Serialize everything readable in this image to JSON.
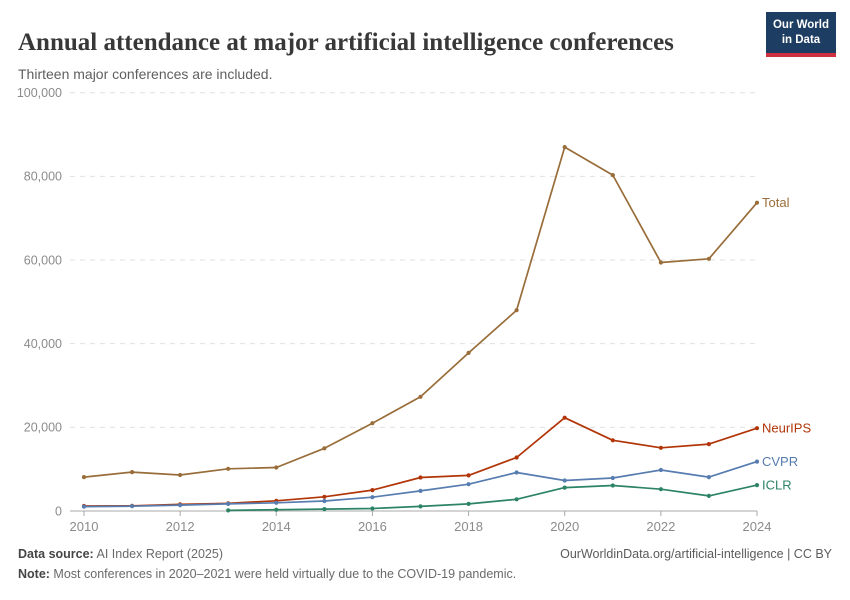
{
  "header": {
    "logo": {
      "line1": "Our World",
      "line2": "in Data",
      "bg_color": "#1d3d63",
      "bar_color": "#d03140"
    }
  },
  "chart_data": {
    "type": "line",
    "title": "Annual attendance at major artificial intelligence conferences",
    "subtitle": "Thirteen major conferences are included.",
    "x": [
      2010,
      2011,
      2012,
      2013,
      2014,
      2015,
      2016,
      2017,
      2018,
      2019,
      2020,
      2021,
      2022,
      2023,
      2024
    ],
    "series": [
      {
        "name": "Total",
        "color": "#996D39",
        "values": [
          8100,
          9300,
          8600,
          10100,
          10400,
          15000,
          21000,
          27300,
          37800,
          48000,
          87000,
          80300,
          59400,
          60300,
          73700
        ]
      },
      {
        "name": "NeurIPS",
        "color": "#B13507",
        "values": [
          1200,
          1250,
          1600,
          1850,
          2450,
          3400,
          5000,
          8000,
          8500,
          12800,
          22300,
          16900,
          15100,
          16000,
          19800
        ]
      },
      {
        "name": "CVPR",
        "color": "#577CB0",
        "values": [
          1050,
          1150,
          1400,
          1700,
          1950,
          2400,
          3300,
          4800,
          6400,
          9200,
          7300,
          7900,
          9800,
          8100,
          11800
        ]
      },
      {
        "name": "ICLR",
        "color": "#2C8465",
        "values": [
          null,
          null,
          null,
          150,
          300,
          450,
          600,
          1100,
          1700,
          2800,
          5600,
          6100,
          5200,
          3600,
          6200
        ]
      }
    ],
    "xlabel": "",
    "ylabel": "",
    "ylim": [
      0,
      100000
    ],
    "yticks": [
      0,
      20000,
      40000,
      60000,
      80000,
      100000
    ],
    "ytick_labels": [
      "0",
      "20,000",
      "40,000",
      "60,000",
      "80,000",
      "100,000"
    ],
    "xticks": [
      2010,
      2012,
      2014,
      2016,
      2018,
      2020,
      2022,
      2024
    ],
    "grid": "dashed horizontal",
    "legend_position": "end-of-line labels"
  },
  "footer": {
    "source_label": "Data source:",
    "source_value": " AI Index Report (2025)",
    "note_label": "Note:",
    "note_value": " Most conferences in 2020–2021 were held virtually due to the COVID-19 pandemic.",
    "rights": "OurWorldinData.org/artificial-intelligence | CC BY"
  }
}
